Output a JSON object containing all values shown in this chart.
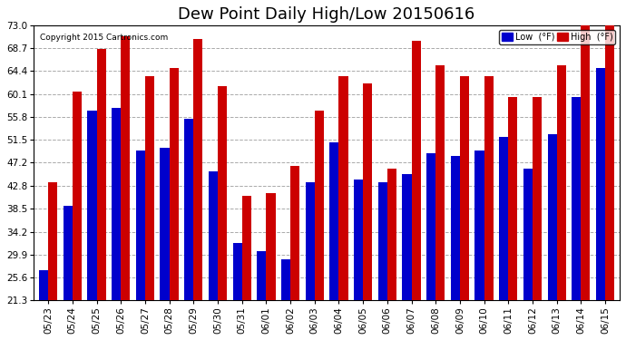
{
  "title": "Dew Point Daily High/Low 20150616",
  "copyright": "Copyright 2015 Cartronics.com",
  "dates": [
    "05/23",
    "05/24",
    "05/25",
    "05/26",
    "05/27",
    "05/28",
    "05/29",
    "05/30",
    "05/31",
    "06/01",
    "06/02",
    "06/03",
    "06/04",
    "06/05",
    "06/06",
    "06/07",
    "06/08",
    "06/09",
    "06/10",
    "06/11",
    "06/12",
    "06/13",
    "06/14",
    "06/15"
  ],
  "low": [
    27.0,
    39.0,
    57.0,
    57.5,
    49.5,
    50.0,
    55.5,
    45.5,
    32.0,
    30.5,
    29.0,
    43.5,
    51.0,
    44.0,
    43.5,
    45.0,
    49.0,
    48.5,
    49.5,
    52.0,
    46.0,
    52.5,
    59.5,
    65.0
  ],
  "high": [
    43.5,
    60.5,
    68.5,
    71.0,
    63.5,
    65.0,
    70.5,
    61.5,
    41.0,
    41.5,
    46.5,
    57.0,
    63.5,
    62.0,
    46.0,
    70.0,
    65.5,
    63.5,
    63.5,
    59.5,
    59.5,
    65.5,
    73.0,
    73.0
  ],
  "low_color": "#0000cc",
  "high_color": "#cc0000",
  "bg_color": "#ffffff",
  "grid_color": "#aaaaaa",
  "ymin": 21.3,
  "ymax": 73.0,
  "yticks": [
    21.3,
    25.6,
    29.9,
    34.2,
    38.5,
    42.8,
    47.2,
    51.5,
    55.8,
    60.1,
    64.4,
    68.7,
    73.0
  ],
  "title_fontsize": 13,
  "tick_fontsize": 7.5,
  "legend_low_label": "Low  (°F)",
  "legend_high_label": "High  (°F)"
}
